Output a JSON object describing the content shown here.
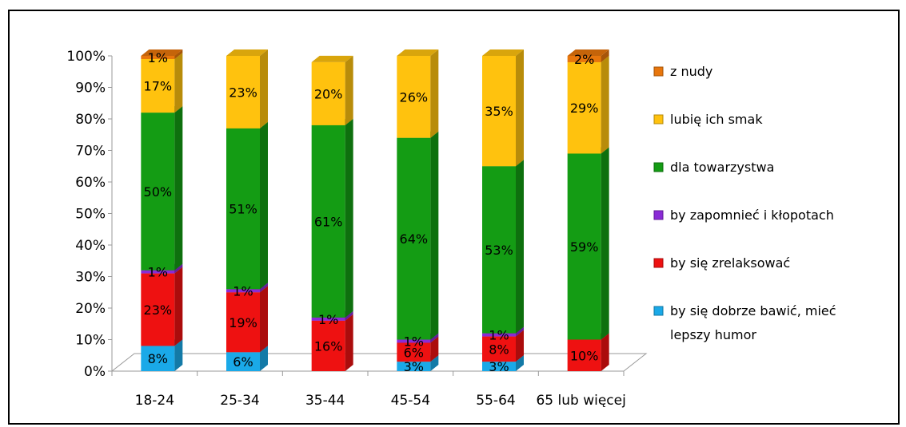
{
  "chart_data": {
    "type": "bar",
    "stacked": true,
    "three_d": true,
    "percent_stacked": true,
    "title": "",
    "xlabel": "",
    "ylabel": "",
    "ylim": [
      0,
      100
    ],
    "y_ticks": [
      "0%",
      "10%",
      "20%",
      "30%",
      "40%",
      "50%",
      "60%",
      "70%",
      "80%",
      "90%",
      "100%"
    ],
    "categories": [
      "18-24",
      "25-34",
      "35-44",
      "45-54",
      "55-64",
      "65 lub więcej"
    ],
    "legend_position": "right",
    "series": [
      {
        "name": "by się dobrze bawić, mieć lepszy humor",
        "legend_lines": [
          "by się dobrze bawić, mieć",
          "lepszy humor"
        ],
        "color": "#1aa9e8",
        "values": [
          8,
          6,
          0,
          3,
          3,
          0
        ],
        "labels": [
          "8%",
          "6%",
          "",
          "3%",
          "3%",
          ""
        ]
      },
      {
        "name": "by się zrelaksować",
        "legend_lines": [
          "by się zrelaksować"
        ],
        "color": "#ee1111",
        "values": [
          23,
          19,
          16,
          6,
          8,
          10
        ],
        "labels": [
          "23%",
          "19%",
          "16%",
          "6%",
          "8%",
          "10%"
        ]
      },
      {
        "name": "by zapomnieć i kłopotach",
        "legend_lines": [
          "by zapomnieć i kłopotach"
        ],
        "color": "#8a2bd6",
        "values": [
          1,
          1,
          1,
          1,
          1,
          0
        ],
        "labels": [
          "1%",
          "1%",
          "1%",
          "1%",
          "1%",
          ""
        ]
      },
      {
        "name": "dla towarzystwa",
        "legend_lines": [
          "dla towarzystwa"
        ],
        "color": "#149c14",
        "values": [
          50,
          51,
          61,
          64,
          53,
          59
        ],
        "labels": [
          "50%",
          "51%",
          "61%",
          "64%",
          "53%",
          "59%"
        ]
      },
      {
        "name": "lubię ich smak",
        "legend_lines": [
          "lubię ich smak"
        ],
        "color": "#ffc20e",
        "values": [
          17,
          23,
          20,
          26,
          35,
          29
        ],
        "labels": [
          "17%",
          "23%",
          "20%",
          "26%",
          "35%",
          "29%"
        ]
      },
      {
        "name": "z nudy",
        "legend_lines": [
          "z nudy"
        ],
        "color": "#e8760c",
        "values": [
          1,
          0,
          0,
          0,
          0,
          2
        ],
        "labels": [
          "1%",
          "",
          "",
          "",
          "",
          "2%"
        ]
      }
    ]
  }
}
